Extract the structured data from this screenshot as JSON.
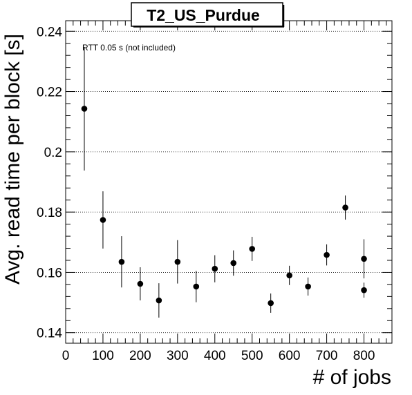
{
  "chart_data": {
    "type": "scatter",
    "title": "T2_US_Purdue",
    "xlabel": "# of jobs",
    "ylabel": "Avg. read time per block [s]",
    "annotation": "RTT 0.05 s (not included)",
    "xlim": [
      0,
      875
    ],
    "ylim": [
      0.1365,
      0.2435
    ],
    "x_ticks": [
      0,
      100,
      200,
      300,
      400,
      500,
      600,
      700,
      800
    ],
    "y_ticks": [
      0.14,
      0.16,
      0.18,
      0.2,
      0.22,
      0.24
    ],
    "y_tick_labels": [
      "0.14",
      "0.16",
      "0.18",
      "0.2",
      "0.22",
      "0.24"
    ],
    "grid": "horizontal dotted",
    "legend": "none",
    "marker_color": "#000000",
    "points": [
      {
        "x": 50,
        "y": 0.2143,
        "err": 0.0205
      },
      {
        "x": 100,
        "y": 0.1774,
        "err": 0.0095
      },
      {
        "x": 150,
        "y": 0.1635,
        "err": 0.0085
      },
      {
        "x": 200,
        "y": 0.1562,
        "err": 0.0055
      },
      {
        "x": 250,
        "y": 0.1507,
        "err": 0.0057
      },
      {
        "x": 300,
        "y": 0.1635,
        "err": 0.0072
      },
      {
        "x": 350,
        "y": 0.1553,
        "err": 0.0052
      },
      {
        "x": 400,
        "y": 0.1612,
        "err": 0.0045
      },
      {
        "x": 450,
        "y": 0.1631,
        "err": 0.0042
      },
      {
        "x": 500,
        "y": 0.1678,
        "err": 0.004
      },
      {
        "x": 550,
        "y": 0.1498,
        "err": 0.0032
      },
      {
        "x": 600,
        "y": 0.159,
        "err": 0.0032
      },
      {
        "x": 650,
        "y": 0.1553,
        "err": 0.003
      },
      {
        "x": 700,
        "y": 0.1658,
        "err": 0.0035
      },
      {
        "x": 750,
        "y": 0.1815,
        "err": 0.004
      },
      {
        "x": 800,
        "y": 0.1645,
        "err": 0.0065
      },
      {
        "x": 800,
        "y": 0.1541,
        "err": 0.0025
      }
    ]
  }
}
